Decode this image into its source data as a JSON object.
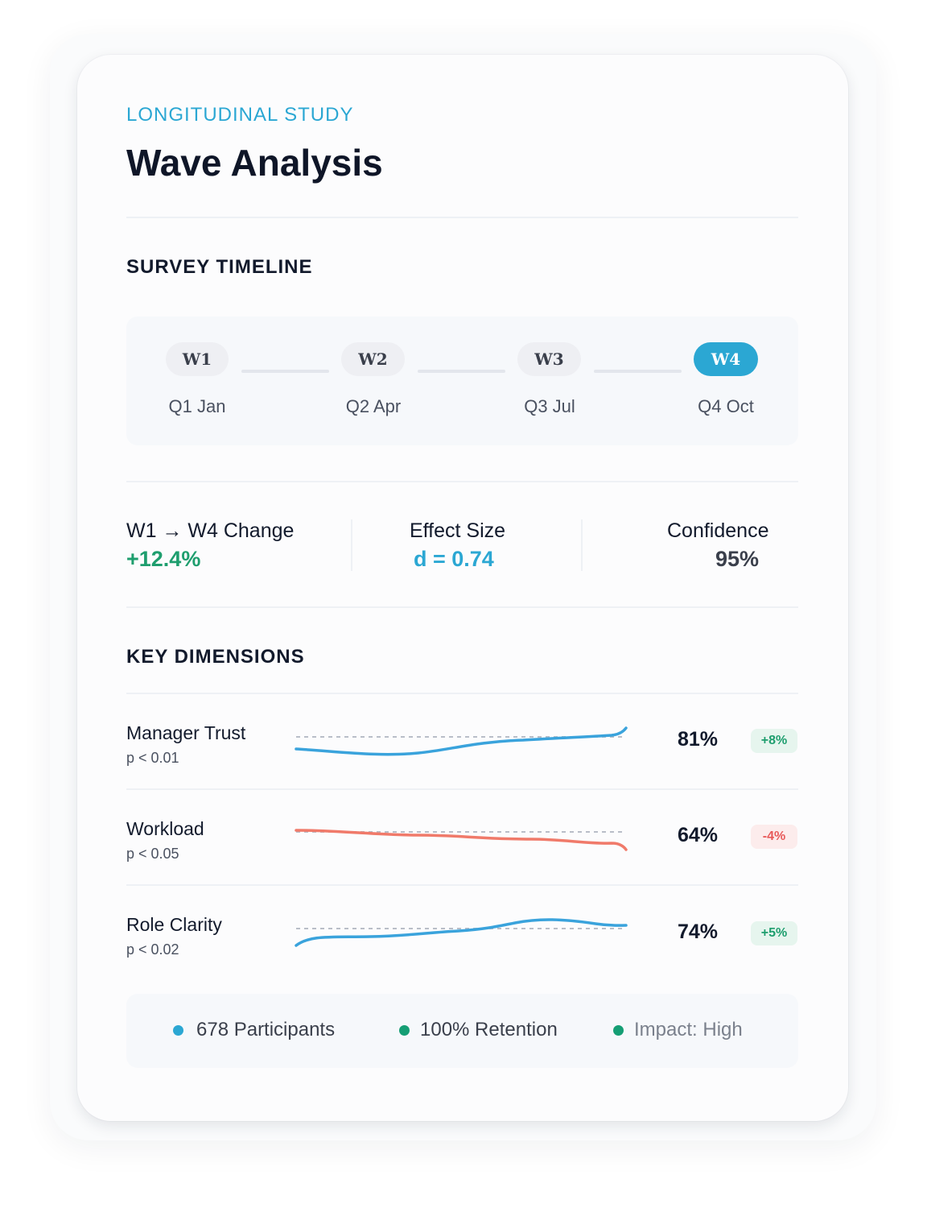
{
  "header": {
    "eyebrow": "LONGITUDINAL STUDY",
    "title": "Wave Analysis"
  },
  "timeline": {
    "section_label": "SURVEY TIMELINE",
    "waves": [
      {
        "label": "W1",
        "date": "Q1 Jan",
        "active": false
      },
      {
        "label": "W2",
        "date": "Q2 Apr",
        "active": false
      },
      {
        "label": "W3",
        "date": "Q3 Jul",
        "active": false
      },
      {
        "label": "W4",
        "date": "Q4 Oct",
        "active": true
      }
    ]
  },
  "stats": {
    "change_label": "W1 → W4 Change",
    "change_value": "+12.4%",
    "effect_label": "Effect Size",
    "effect_value": "d = 0.74",
    "confidence_label": "Confidence",
    "confidence_value": "95%"
  },
  "dimensions": {
    "section_label": "KEY DIMENSIONS",
    "items": [
      {
        "name": "Manager Trust",
        "p": "p < 0.01",
        "pct": "81%",
        "delta": "+8%",
        "trend": "up"
      },
      {
        "name": "Workload",
        "p": "p < 0.05",
        "pct": "64%",
        "delta": "-4%",
        "trend": "down"
      },
      {
        "name": "Role Clarity",
        "p": "p < 0.02",
        "pct": "74%",
        "delta": "+5%",
        "trend": "up"
      }
    ]
  },
  "footer": {
    "participants": "678 Participants",
    "retention": "100% Retention",
    "impact": "Impact: High"
  },
  "colors": {
    "accent": "#2ba7d3",
    "positive": "#1e9e6e",
    "negative": "#f07a6a",
    "text": "#121a2c"
  }
}
